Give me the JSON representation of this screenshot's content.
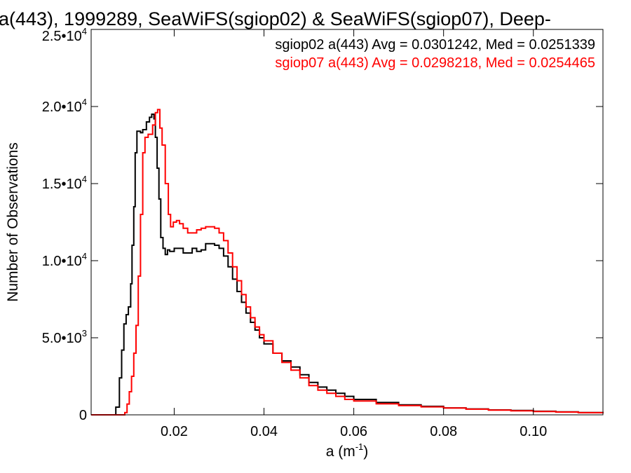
{
  "chart_data": {
    "type": "line",
    "title": "a(443), 1999289, SeaWiFS(sgiop02) & SeaWiFS(sgiop07), Deep-",
    "xlabel": "a (m",
    "xlabel_sup": "-1",
    "xlabel_close": ")",
    "ylabel": "Number of Observations",
    "xlim": [
      0.0015,
      0.1155
    ],
    "ylim": [
      0,
      25000
    ],
    "grid": false,
    "step": true,
    "x_ticks": [
      {
        "value": 0.02,
        "label": "0.02"
      },
      {
        "value": 0.04,
        "label": "0.04"
      },
      {
        "value": 0.06,
        "label": "0.06"
      },
      {
        "value": 0.08,
        "label": "0.08"
      },
      {
        "value": 0.1,
        "label": "0.10"
      }
    ],
    "y_ticks": [
      {
        "value": 0,
        "mant": "0",
        "exp": ""
      },
      {
        "value": 5000,
        "mant": "5.0•10",
        "exp": "3"
      },
      {
        "value": 10000,
        "mant": "1.0•10",
        "exp": "4"
      },
      {
        "value": 15000,
        "mant": "1.5•10",
        "exp": "4"
      },
      {
        "value": 20000,
        "mant": "2.0•10",
        "exp": "4"
      },
      {
        "value": 25000,
        "mant": "2.5•10",
        "exp": "4"
      }
    ],
    "legend": {
      "placement": "top-right",
      "entries": [
        {
          "text": "sgiop02 a(443) Avg = 0.0301242, Med = 0.0251339",
          "color": "#000000"
        },
        {
          "text": "sgiop07 a(443) Avg = 0.0298218, Med = 0.0254465",
          "color": "#ff0000"
        }
      ]
    },
    "series": [
      {
        "name": "sgiop02",
        "color": "#000000",
        "points": [
          [
            0.0015,
            0
          ],
          [
            0.006,
            0
          ],
          [
            0.007,
            500
          ],
          [
            0.0078,
            2400
          ],
          [
            0.0083,
            4200
          ],
          [
            0.0088,
            5900
          ],
          [
            0.0093,
            6500
          ],
          [
            0.0098,
            7000
          ],
          [
            0.0103,
            8500
          ],
          [
            0.0106,
            11000
          ],
          [
            0.011,
            13500
          ],
          [
            0.0113,
            17000
          ],
          [
            0.0117,
            18400
          ],
          [
            0.0125,
            18300
          ],
          [
            0.013,
            18500
          ],
          [
            0.0138,
            19000
          ],
          [
            0.0145,
            19300
          ],
          [
            0.015,
            19500
          ],
          [
            0.0155,
            19200
          ],
          [
            0.0158,
            18000
          ],
          [
            0.0162,
            16000
          ],
          [
            0.0166,
            14000
          ],
          [
            0.017,
            11500
          ],
          [
            0.0175,
            10800
          ],
          [
            0.018,
            10400
          ],
          [
            0.0185,
            10700
          ],
          [
            0.019,
            10600
          ],
          [
            0.0195,
            10600
          ],
          [
            0.02,
            10800
          ],
          [
            0.021,
            10800
          ],
          [
            0.022,
            10500
          ],
          [
            0.023,
            10500
          ],
          [
            0.024,
            10800
          ],
          [
            0.025,
            10600
          ],
          [
            0.026,
            10700
          ],
          [
            0.027,
            11100
          ],
          [
            0.028,
            11100
          ],
          [
            0.029,
            11000
          ],
          [
            0.03,
            10800
          ],
          [
            0.031,
            10300
          ],
          [
            0.032,
            9600
          ],
          [
            0.033,
            8800
          ],
          [
            0.034,
            8000
          ],
          [
            0.035,
            7300
          ],
          [
            0.036,
            6600
          ],
          [
            0.037,
            6000
          ],
          [
            0.038,
            5500
          ],
          [
            0.039,
            5000
          ],
          [
            0.04,
            4600
          ],
          [
            0.042,
            4000
          ],
          [
            0.044,
            3500
          ],
          [
            0.046,
            3100
          ],
          [
            0.048,
            2600
          ],
          [
            0.05,
            2100
          ],
          [
            0.052,
            1800
          ],
          [
            0.054,
            1600
          ],
          [
            0.056,
            1400
          ],
          [
            0.058,
            1200
          ],
          [
            0.06,
            1000
          ],
          [
            0.065,
            800
          ],
          [
            0.07,
            650
          ],
          [
            0.075,
            550
          ],
          [
            0.08,
            450
          ],
          [
            0.085,
            380
          ],
          [
            0.09,
            320
          ],
          [
            0.095,
            280
          ],
          [
            0.1,
            230
          ],
          [
            0.105,
            190
          ],
          [
            0.11,
            150
          ],
          [
            0.1155,
            110
          ]
        ]
      },
      {
        "name": "sgiop07",
        "color": "#ff0000",
        "points": [
          [
            0.0015,
            0
          ],
          [
            0.0085,
            0
          ],
          [
            0.009,
            150
          ],
          [
            0.0095,
            700
          ],
          [
            0.01,
            1500
          ],
          [
            0.0105,
            2500
          ],
          [
            0.011,
            4000
          ],
          [
            0.0115,
            5800
          ],
          [
            0.012,
            9000
          ],
          [
            0.0125,
            13000
          ],
          [
            0.013,
            17000
          ],
          [
            0.0135,
            18000
          ],
          [
            0.0142,
            18200
          ],
          [
            0.0148,
            18200
          ],
          [
            0.0152,
            18800
          ],
          [
            0.0158,
            19600
          ],
          [
            0.0163,
            19800
          ],
          [
            0.0168,
            18600
          ],
          [
            0.0173,
            17500
          ],
          [
            0.018,
            15000
          ],
          [
            0.0187,
            13000
          ],
          [
            0.0192,
            12200
          ],
          [
            0.0198,
            12500
          ],
          [
            0.0205,
            12600
          ],
          [
            0.0212,
            12400
          ],
          [
            0.022,
            12100
          ],
          [
            0.023,
            11800
          ],
          [
            0.024,
            11800
          ],
          [
            0.025,
            12000
          ],
          [
            0.026,
            12100
          ],
          [
            0.027,
            12200
          ],
          [
            0.028,
            12200
          ],
          [
            0.029,
            12100
          ],
          [
            0.03,
            11800
          ],
          [
            0.031,
            11300
          ],
          [
            0.032,
            10500
          ],
          [
            0.033,
            9600
          ],
          [
            0.034,
            8700
          ],
          [
            0.035,
            7800
          ],
          [
            0.036,
            7000
          ],
          [
            0.037,
            6300
          ],
          [
            0.038,
            5700
          ],
          [
            0.039,
            5200
          ],
          [
            0.04,
            4800
          ],
          [
            0.042,
            4000
          ],
          [
            0.044,
            3400
          ],
          [
            0.046,
            2900
          ],
          [
            0.048,
            2400
          ],
          [
            0.05,
            1900
          ],
          [
            0.052,
            1600
          ],
          [
            0.054,
            1400
          ],
          [
            0.056,
            1200
          ],
          [
            0.058,
            1000
          ],
          [
            0.06,
            900
          ],
          [
            0.065,
            720
          ],
          [
            0.07,
            600
          ],
          [
            0.075,
            520
          ],
          [
            0.08,
            440
          ],
          [
            0.085,
            370
          ],
          [
            0.09,
            310
          ],
          [
            0.095,
            260
          ],
          [
            0.1,
            220
          ],
          [
            0.105,
            180
          ],
          [
            0.11,
            140
          ],
          [
            0.1155,
            100
          ]
        ]
      }
    ]
  }
}
